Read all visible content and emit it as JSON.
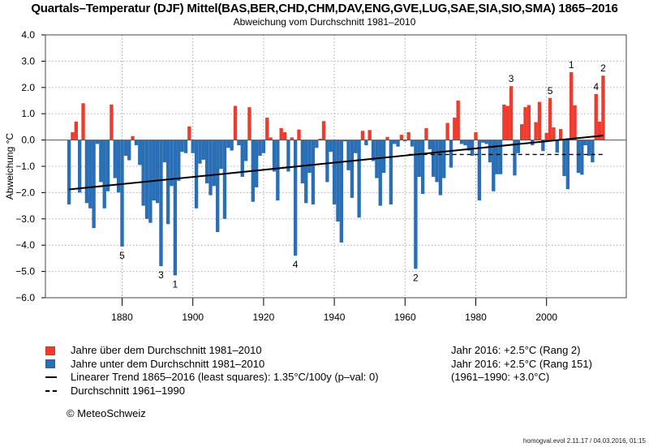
{
  "header": {
    "title": "Quartals–Temperatur (DJF) Mittel(BAS,BER,CHD,CHM,DAV,ENG,GVE,LUG,SAE,SIA,SIO,SMA) 1865–2016",
    "subtitle": "Abweichung vom Durchschnitt 1981–2010"
  },
  "chart_data": {
    "type": "bar",
    "title": "Quartals–Temperatur (DJF) Mittel(BAS,BER,CHD,CHM,DAV,ENG,GVE,LUG,SAE,SIA,SIO,SMA) 1865–2016",
    "subtitle": "Abweichung vom Durchschnitt 1981–2010",
    "xlabel": "",
    "ylabel": "Abweichung °C",
    "ylim": [
      -6.0,
      4.0
    ],
    "xlim": [
      1860,
      2019
    ],
    "yticks": [
      "4.0",
      "3.0",
      "2.0",
      "1.0",
      "0.0",
      "−1.0",
      "−2.0",
      "−3.0",
      "−4.0",
      "−5.0",
      "−6.0"
    ],
    "ytick_values": [
      4,
      3,
      2,
      1,
      0,
      -1,
      -2,
      -3,
      -4,
      -5,
      -6
    ],
    "xticks": [
      "1880",
      "1900",
      "1920",
      "1940",
      "1960",
      "1980",
      "2000"
    ],
    "xtick_values": [
      1880,
      1900,
      1920,
      1940,
      1960,
      1980,
      2000
    ],
    "grid": true,
    "start_year": 1865,
    "values": [
      -2.45,
      0.3,
      0.7,
      -2.0,
      1.4,
      -2.4,
      -2.6,
      -3.35,
      -0.15,
      -1.6,
      -2.6,
      -1.95,
      1.35,
      -1.45,
      -2.0,
      -4.05,
      -0.6,
      -0.77,
      0.15,
      -0.2,
      -0.95,
      -2.5,
      -3.0,
      -3.15,
      -2.3,
      -2.4,
      -4.8,
      -0.85,
      -3.2,
      -1.75,
      -5.15,
      -1.55,
      -0.45,
      -0.5,
      0.52,
      -0.5,
      -2.6,
      -0.9,
      -0.75,
      -1.65,
      -2.1,
      -1.75,
      -3.5,
      -1.1,
      -3.0,
      -0.3,
      -0.4,
      1.3,
      -0.2,
      -1.4,
      -0.8,
      1.25,
      -2.35,
      -1.8,
      -0.6,
      -0.5,
      0.85,
      0.1,
      -1.2,
      -2.3,
      0.45,
      0.3,
      -1.2,
      0.1,
      -4.4,
      0.4,
      -1.65,
      -2.4,
      -1.25,
      -2.45,
      -0.3,
      0.05,
      0.72,
      -1.6,
      -0.45,
      -2.45,
      -3.1,
      -3.9,
      -0.05,
      -1.15,
      -2.2,
      -0.5,
      -2.95,
      0.35,
      -0.2,
      0.38,
      -0.8,
      -1.45,
      -2.5,
      -1.25,
      0.12,
      -2.45,
      -0.15,
      -0.25,
      0.2,
      -0.05,
      0.3,
      -0.25,
      -4.9,
      -1.4,
      -2.05,
      0.45,
      -0.35,
      -1.4,
      -1.6,
      -2.1,
      -1.45,
      0.65,
      -1.05,
      0.85,
      1.5,
      -0.15,
      -0.2,
      -0.4,
      -0.6,
      0.3,
      -2.3,
      -0.1,
      -0.15,
      -0.85,
      -1.95,
      -1.3,
      -1.3,
      1.35,
      1.3,
      2.05,
      -1.35,
      -0.5,
      0.6,
      1.25,
      1.33,
      -0.2,
      0.68,
      1.45,
      -0.42,
      0.27,
      1.6,
      0.48,
      -0.48,
      0.42,
      -1.37,
      -1.87,
      2.58,
      1.32,
      -1.25,
      -1.32,
      -0.2,
      -0.6,
      -0.85,
      1.75,
      0.7,
      2.45
    ],
    "above_color": "#ee3b2e",
    "below_color": "#2a6fb5",
    "trend": {
      "label": "Linearer Trend 1865–2016 (least squares): 1.35°C/100y (p–val: 0)",
      "rate_per_100y": 1.35,
      "start": [
        1865,
        -1.88
      ],
      "end": [
        2016,
        0.17
      ]
    },
    "reference_line": {
      "label": "Durchschnitt 1961–1990",
      "value": -0.55,
      "from": 1961,
      "to": 2016
    },
    "rank_labels": [
      {
        "year": 2007,
        "rank": "1"
      },
      {
        "year": 2016,
        "rank": "2"
      },
      {
        "year": 1990,
        "rank": "3"
      },
      {
        "year": 2014,
        "rank": "4"
      },
      {
        "year": 2001,
        "rank": "5"
      },
      {
        "year": 1895,
        "rank": "1"
      },
      {
        "year": 1963,
        "rank": "2"
      },
      {
        "year": 1891,
        "rank": "3"
      },
      {
        "year": 1929,
        "rank": "4"
      },
      {
        "year": 1880,
        "rank": "5"
      }
    ]
  },
  "legend": {
    "above": "Jahre über dem Durchschnitt 1981–2010",
    "below": "Jahre unter dem Durchschnitt 1981–2010",
    "trend": "Linearer Trend 1865–2016 (least squares): 1.35°C/100y (p–val: 0)",
    "reference": "Durchschnitt 1961–1990"
  },
  "copyright": "© MeteoSchweiz",
  "info": {
    "line1": "Jahr 2016: +2.5°C (Rang 2)",
    "line2": "Jahr 2016: +2.5°C (Rang 151)",
    "line3": "(1961–1990: +3.0°C)"
  },
  "footer": "homogval.evol 2.11.17 / 04.03.2016, 01:15"
}
